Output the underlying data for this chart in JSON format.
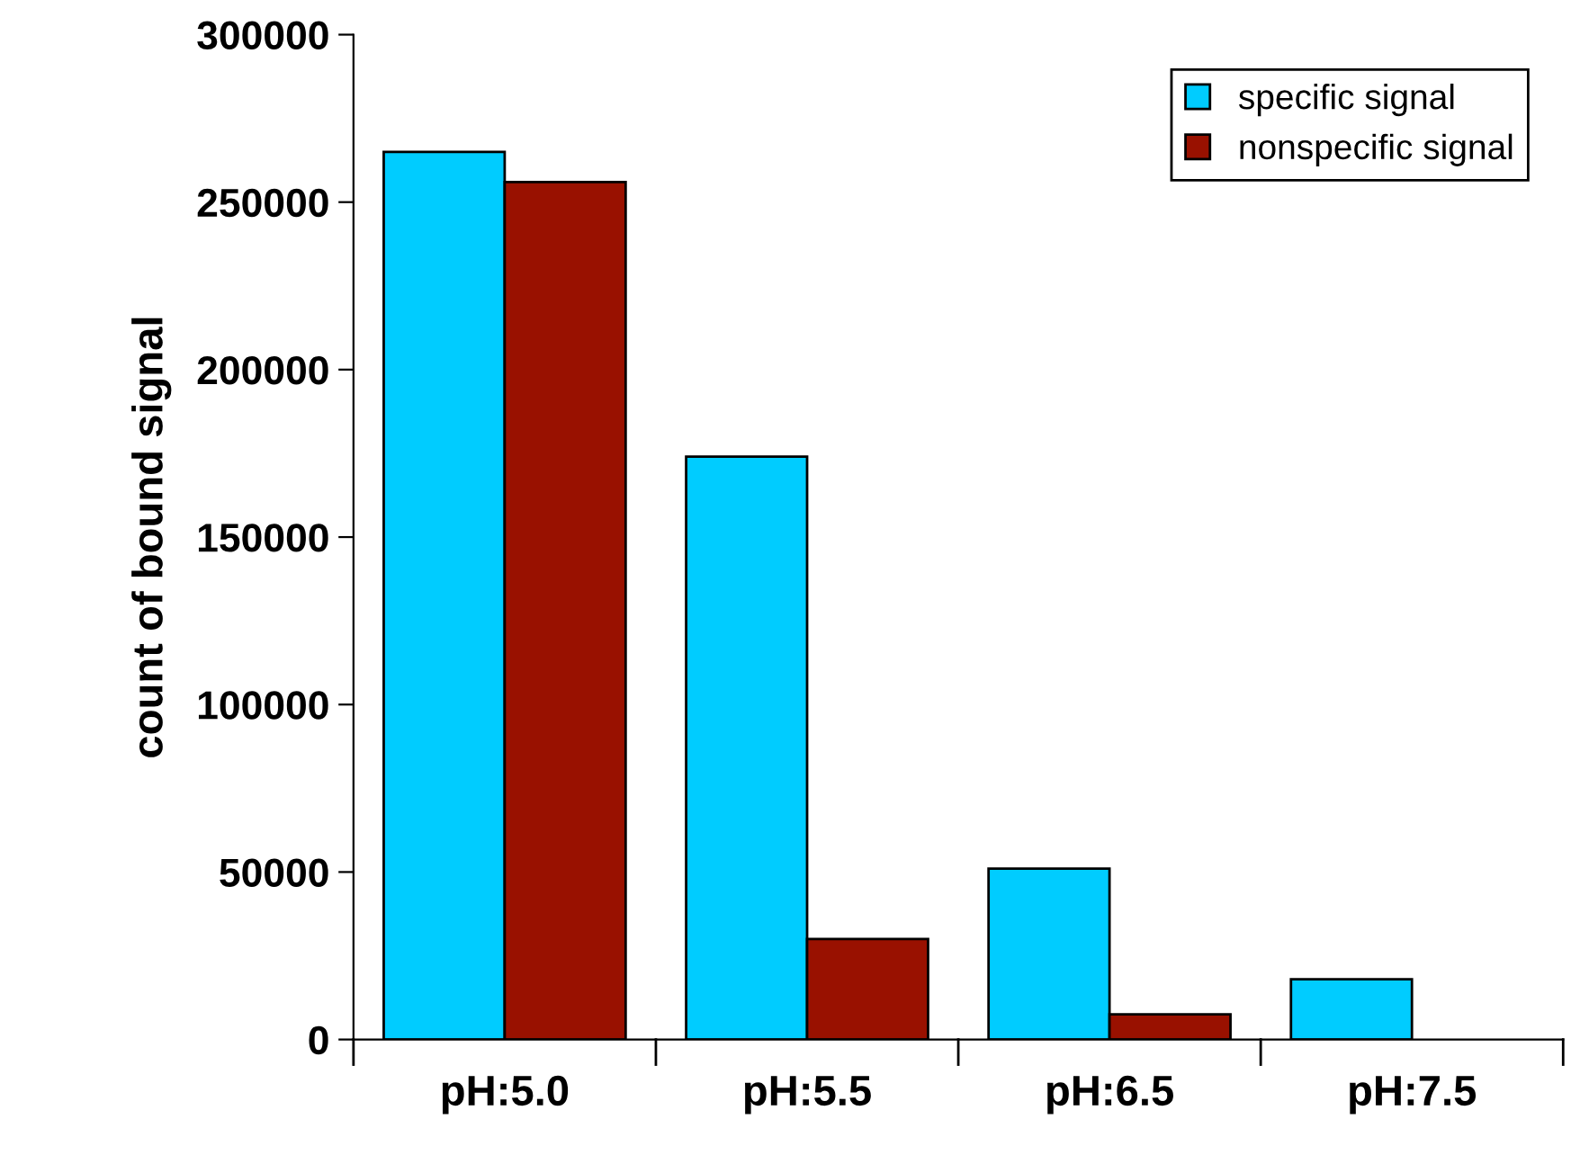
{
  "chart_data": {
    "type": "bar",
    "ylabel": "count of bound signal",
    "categories": [
      "pH:5.0",
      "pH:5.5",
      "pH:6.5",
      "pH:7.5"
    ],
    "series": [
      {
        "name": "specific signal",
        "color": "#00ccff",
        "values": [
          265000,
          174000,
          51000,
          18000
        ]
      },
      {
        "name": "nonspecific signal",
        "color": "#991100",
        "values": [
          256000,
          30000,
          7500,
          null
        ]
      }
    ],
    "ylim": [
      0,
      300000
    ],
    "yticks": [
      0,
      50000,
      100000,
      150000,
      200000,
      250000,
      300000
    ],
    "grid": false,
    "legend": "top right"
  }
}
